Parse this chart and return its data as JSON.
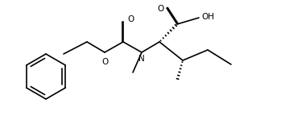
{
  "background": "#ffffff",
  "line_color": "#000000",
  "line_width": 1.2,
  "font_size": 7.5,
  "figsize": [
    3.54,
    1.54
  ],
  "dpi": 100,
  "xlim": [
    0.05,
    0.95
  ],
  "ylim": [
    0.08,
    0.92
  ]
}
